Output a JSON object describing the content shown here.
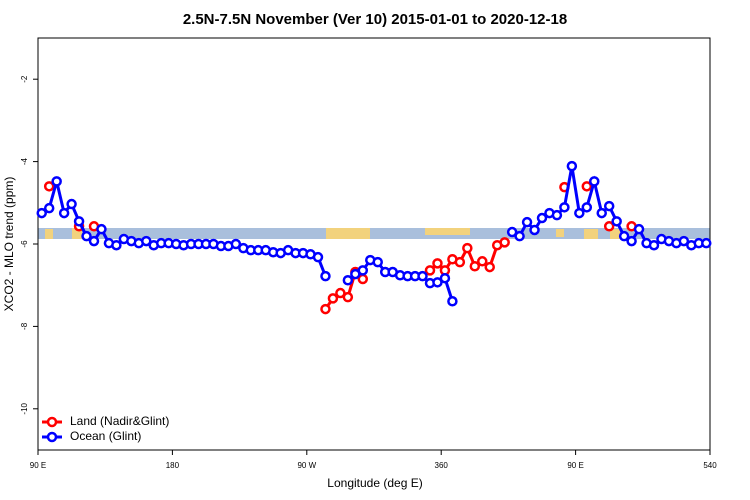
{
  "chart_data": {
    "type": "line",
    "title": "2.5N-7.5N November (Ver 10)   2015-01-01 to 2020-12-18",
    "x_label": "Longitude (deg E)",
    "y_label": "XCO2 - MLO trend (ppm)",
    "x": [
      92.5,
      97.5,
      102.5,
      107.5,
      112.5,
      117.5,
      122.5,
      127.5,
      132.5,
      137.5,
      142.5,
      147.5,
      152.5,
      157.5,
      162.5,
      167.5,
      172.5,
      177.5,
      182.5,
      187.5,
      192.5,
      197.5,
      202.5,
      207.5,
      212.5,
      217.5,
      222.5,
      227.5,
      232.5,
      237.5,
      242.5,
      247.5,
      252.5,
      257.5,
      262.5,
      267.5,
      272.5,
      277.5,
      282.5,
      287.5,
      292.5,
      297.5,
      302.5,
      307.5,
      312.5,
      317.5,
      322.5,
      327.5,
      332.5,
      337.5,
      342.5,
      347.5,
      352.5,
      357.5,
      362.5,
      367.5,
      372.5,
      377.5,
      382.5,
      387.5,
      392.5,
      397.5,
      402.5,
      407.5,
      412.5,
      417.5,
      422.5,
      427.5,
      432.5,
      437.5,
      442.5,
      447.5,
      452.5,
      457.5,
      462.5,
      467.5,
      472.5,
      477.5,
      482.5,
      487.5,
      492.5,
      497.5,
      502.5,
      507.5,
      512.5,
      517.5,
      522.5,
      527.5,
      532.5,
      537.5
    ],
    "series": [
      {
        "name": "Land (Nadir&Glint)",
        "color": "#ff0000",
        "values": [
          null,
          -4.6,
          null,
          null,
          null,
          -5.57,
          null,
          -5.57,
          null,
          null,
          null,
          null,
          null,
          null,
          null,
          null,
          null,
          null,
          null,
          null,
          null,
          null,
          null,
          null,
          null,
          null,
          null,
          null,
          null,
          null,
          null,
          null,
          null,
          null,
          null,
          null,
          null,
          null,
          -7.58,
          -7.32,
          -7.19,
          -7.29,
          -6.68,
          -6.85,
          null,
          null,
          null,
          null,
          null,
          null,
          null,
          null,
          -6.64,
          -6.47,
          -6.64,
          -6.37,
          -6.44,
          -6.1,
          -6.54,
          -6.42,
          -6.56,
          -6.03,
          -5.96,
          null,
          null,
          null,
          null,
          null,
          null,
          null,
          -4.62,
          null,
          null,
          -4.6,
          null,
          null,
          -5.57,
          null,
          null,
          -5.57,
          null,
          null,
          null,
          null,
          null,
          null,
          null,
          null,
          null,
          null
        ]
      },
      {
        "name": "Ocean (Glint)",
        "color": "#0000ff",
        "values": [
          -5.25,
          -5.13,
          -4.48,
          -5.25,
          -5.03,
          -5.45,
          -5.81,
          -5.93,
          -5.64,
          -5.98,
          -6.03,
          -5.88,
          -5.93,
          -5.98,
          -5.93,
          -6.03,
          -5.98,
          -5.98,
          -6,
          -6.03,
          -6,
          -6,
          -6,
          -6,
          -6.05,
          -6.05,
          -6,
          -6.1,
          -6.15,
          -6.15,
          -6.15,
          -6.2,
          -6.22,
          -6.15,
          -6.22,
          -6.22,
          -6.25,
          -6.32,
          -6.78,
          null,
          null,
          -6.88,
          -6.73,
          -6.64,
          -6.39,
          -6.44,
          -6.68,
          -6.68,
          -6.76,
          -6.78,
          -6.78,
          -6.78,
          -6.95,
          -6.93,
          -6.83,
          -7.39,
          null,
          null,
          null,
          null,
          null,
          null,
          null,
          -5.71,
          -5.81,
          -5.47,
          -5.66,
          -5.37,
          -5.25,
          -5.3,
          -5.11,
          -4.11,
          -5.25,
          -5.11,
          -4.48,
          -5.25,
          -5.08,
          -5.45,
          -5.81,
          -5.93,
          -5.64,
          -5.98,
          -6.03,
          -5.88,
          -5.93,
          -5.98,
          -5.93,
          -6.03,
          -5.98,
          -5.98
        ]
      }
    ],
    "xlim": [
      90,
      540
    ],
    "xticks": [
      {
        "value": 90,
        "label": "90 E"
      },
      180,
      {
        "value": 270,
        "label": "90 W"
      },
      360,
      {
        "value": 450,
        "label": "90 E"
      },
      540
    ],
    "ylim": [
      -11,
      -1
    ],
    "yticks": [
      -10,
      -8,
      -6,
      -4,
      -2
    ],
    "legend": "bottom-left"
  }
}
